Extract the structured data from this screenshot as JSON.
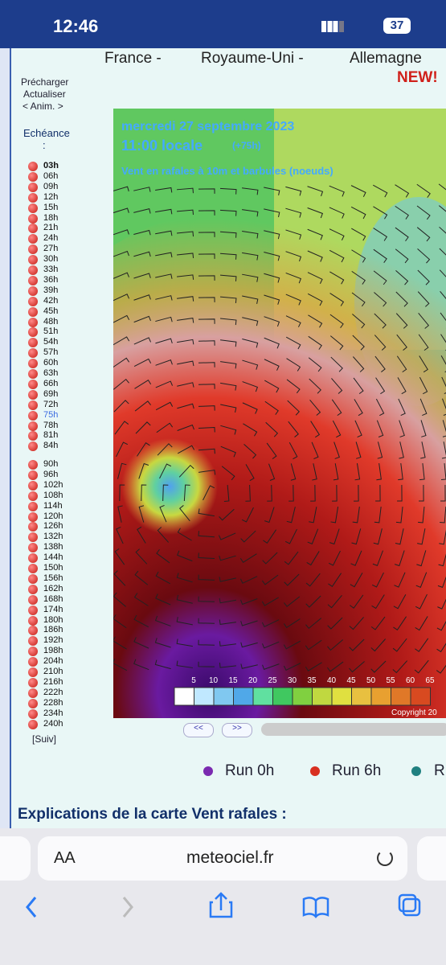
{
  "status_bar": {
    "time": "12:46",
    "battery": "37"
  },
  "header": {
    "links": [
      "France -",
      "Royaume-Uni -",
      "Allemagne"
    ],
    "badge": "NEW!"
  },
  "sidebar": {
    "controls": [
      "Précharger",
      "Actualiser",
      "< Anim. >"
    ],
    "label": "Echéance",
    "colon": ":",
    "group1": [
      "03h",
      "06h",
      "09h",
      "12h",
      "15h",
      "18h",
      "21h",
      "24h",
      "27h",
      "30h",
      "33h",
      "36h",
      "39h",
      "42h",
      "45h",
      "48h",
      "51h",
      "54h",
      "57h",
      "60h",
      "63h",
      "66h",
      "69h",
      "72h",
      "75h",
      "78h",
      "81h",
      "84h"
    ],
    "group2": [
      "90h",
      "96h",
      "102h",
      "108h",
      "114h",
      "120h",
      "126h",
      "132h",
      "138h",
      "144h",
      "150h",
      "156h",
      "162h",
      "168h",
      "174h",
      "180h",
      "186h",
      "192h",
      "198h",
      "204h",
      "210h",
      "216h",
      "222h",
      "228h",
      "234h",
      "240h"
    ],
    "selected": "75h",
    "next": "[Suiv]"
  },
  "map": {
    "date": "mercredi 27 septembre 2023",
    "time": "11:00 locale",
    "offset": "(+75h)",
    "subtitle": "Vent en rafales à 10m et barbules (noeuds)",
    "scale": [
      "5",
      "10",
      "15",
      "20",
      "25",
      "30",
      "35",
      "40",
      "45",
      "50",
      "55",
      "60",
      "65"
    ],
    "copyright": "Copyright 20"
  },
  "nav": {
    "prev": "<<",
    "next": ">>"
  },
  "runs": [
    "Run 0h",
    "Run 6h",
    "R"
  ],
  "section_title": "Explications de la carte Vent rafales :",
  "browser": {
    "text_size": "AA",
    "url": "meteociel.fr"
  }
}
